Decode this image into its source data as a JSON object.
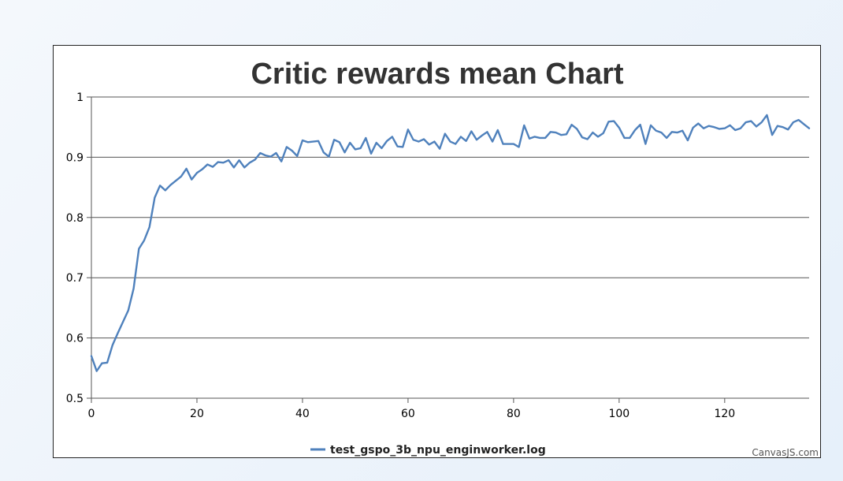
{
  "chart_data": {
    "type": "line",
    "title": "Critic rewards mean Chart",
    "xlabel": "",
    "ylabel": "",
    "xlim": [
      0,
      136
    ],
    "ylim": [
      0.5,
      1
    ],
    "x_ticks": [
      0,
      20,
      40,
      60,
      80,
      100,
      120
    ],
    "y_ticks": [
      0.5,
      0.6,
      0.7,
      0.8,
      0.9,
      1
    ],
    "y_tick_labels": [
      "0.5",
      "0.6",
      "0.7",
      "0.8",
      "0.9",
      "1"
    ],
    "grid": true,
    "legend_position": "bottom-center",
    "series": [
      {
        "name": "test_gspo_3b_npu_enginworker.log",
        "color": "#4f81bc",
        "values": [
          0.57,
          0.545,
          0.558,
          0.559,
          0.588,
          0.608,
          0.627,
          0.646,
          0.682,
          0.748,
          0.762,
          0.784,
          0.833,
          0.853,
          0.845,
          0.854,
          0.861,
          0.868,
          0.881,
          0.863,
          0.874,
          0.88,
          0.888,
          0.884,
          0.892,
          0.891,
          0.895,
          0.883,
          0.895,
          0.883,
          0.891,
          0.896,
          0.907,
          0.903,
          0.901,
          0.907,
          0.893,
          0.917,
          0.911,
          0.902,
          0.928,
          0.925,
          0.926,
          0.927,
          0.908,
          0.901,
          0.929,
          0.925,
          0.908,
          0.924,
          0.913,
          0.915,
          0.932,
          0.906,
          0.924,
          0.915,
          0.927,
          0.934,
          0.918,
          0.917,
          0.946,
          0.929,
          0.926,
          0.93,
          0.921,
          0.926,
          0.914,
          0.939,
          0.926,
          0.922,
          0.934,
          0.927,
          0.943,
          0.929,
          0.936,
          0.942,
          0.926,
          0.945,
          0.922,
          0.922,
          0.922,
          0.917,
          0.953,
          0.931,
          0.934,
          0.932,
          0.932,
          0.942,
          0.941,
          0.937,
          0.938,
          0.954,
          0.947,
          0.933,
          0.93,
          0.941,
          0.934,
          0.94,
          0.959,
          0.96,
          0.949,
          0.932,
          0.932,
          0.945,
          0.954,
          0.922,
          0.953,
          0.944,
          0.941,
          0.932,
          0.942,
          0.941,
          0.944,
          0.928,
          0.949,
          0.956,
          0.948,
          0.952,
          0.95,
          0.947,
          0.948,
          0.953,
          0.945,
          0.948,
          0.958,
          0.96,
          0.951,
          0.958,
          0.97,
          0.937,
          0.952,
          0.95,
          0.946,
          0.958,
          0.962,
          0.955,
          0.948
        ]
      }
    ]
  },
  "credit": "CanvasJS.com"
}
